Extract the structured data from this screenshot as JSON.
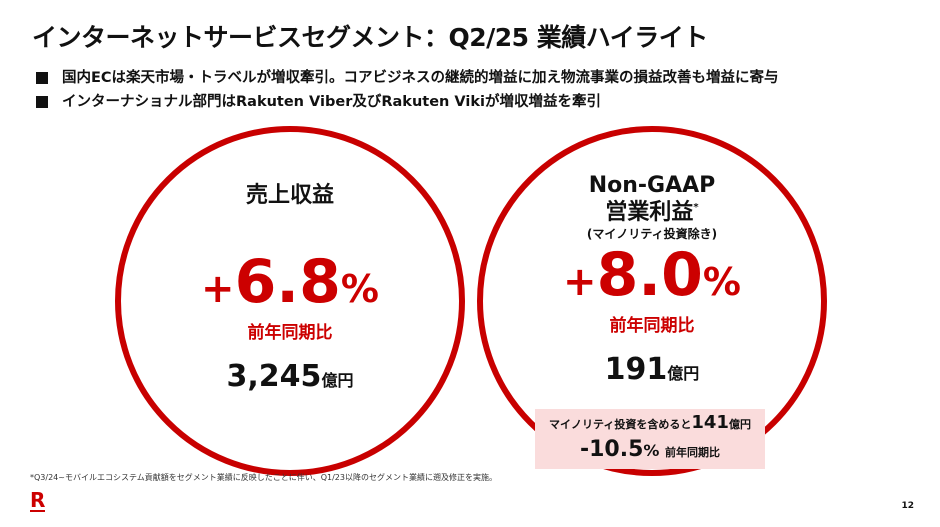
{
  "title": "インターネットサービスセグメント：Q2/25 業績ハイライト",
  "bullets": [
    "国内ECは楽天市場・トラベルが増収牽引。コアビジネスの継続的増益に加え物流事業の損益改善も増益に寄与",
    "インターナショナル部門はRakuten Viber及びRakuten Vikiが増収増益を牽引"
  ],
  "revenue": {
    "label": "売上収益",
    "sign": "+",
    "value": "6.8",
    "pct": "%",
    "yoy": "前年同期比",
    "amount": "3,245",
    "unit": "億円"
  },
  "op": {
    "label1": "Non-GAAP",
    "label2": "営業利益",
    "asterisk": "*",
    "sub": "(マイノリティ投資除き)",
    "sign": "+",
    "value": "8.0",
    "pct": "%",
    "yoy": "前年同期比",
    "amount": "191",
    "unit": "億円"
  },
  "note": {
    "line1": "マイノリティ投資を含めると",
    "amount": "141",
    "unit": "億円",
    "value": "-10.5",
    "pct": "%",
    "yoy": "前年同期比"
  },
  "footnote": "*Q3/24~モバイルエコシステム貢献額をセグメント業績に反映したことに伴い、Q1/23以降のセグメント業績に遡及修正を実施。",
  "logo": "R",
  "page": "12",
  "colors": {
    "accent": "#c80000",
    "note_bg": "#fadcdc"
  }
}
